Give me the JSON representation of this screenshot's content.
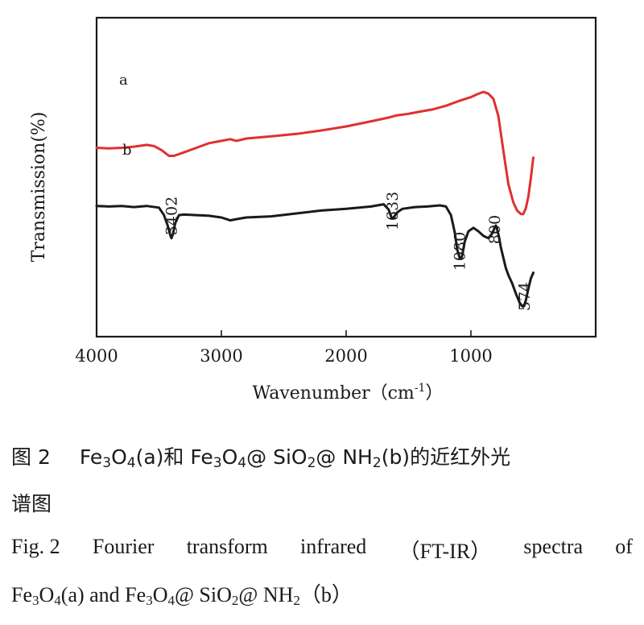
{
  "chart_data": {
    "type": "line",
    "xlabel": "Wavenumber（cm",
    "xlabel_sup": "-1",
    "xlabel_close": "）",
    "ylabel": "Transmission(%)",
    "xlim": [
      4000,
      0
    ],
    "x_reversed": true,
    "x_ticks": [
      "4000",
      "3000",
      "2000",
      "1000"
    ],
    "x_tick_values": [
      4000,
      3000,
      2000,
      1000
    ],
    "grid": false,
    "legend": "none",
    "series": [
      {
        "name": "a",
        "color": "#e03030",
        "x": [
          4000,
          3900,
          3800,
          3700,
          3600,
          3540,
          3480,
          3420,
          3380,
          3300,
          3200,
          3100,
          3000,
          2930,
          2880,
          2800,
          2700,
          2600,
          2400,
          2200,
          2000,
          1800,
          1650,
          1600,
          1500,
          1400,
          1300,
          1200,
          1100,
          1000,
          950,
          900,
          860,
          820,
          780,
          740,
          700,
          660,
          630,
          600,
          580,
          560,
          540,
          520,
          500
        ],
        "y": [
          6.05,
          6.0,
          6.05,
          6.15,
          6.3,
          6.2,
          5.85,
          5.35,
          5.35,
          5.65,
          6.05,
          6.45,
          6.65,
          6.8,
          6.65,
          6.85,
          6.95,
          7.05,
          7.25,
          7.55,
          7.9,
          8.35,
          8.7,
          8.85,
          9.0,
          9.2,
          9.4,
          9.7,
          10.1,
          10.45,
          10.7,
          10.9,
          10.75,
          10.3,
          8.8,
          5.8,
          2.9,
          1.3,
          0.6,
          0.3,
          0.3,
          0.8,
          1.8,
          3.4,
          5.2
        ]
      },
      {
        "name": "b",
        "color": "#1a1a1a",
        "x": [
          4000,
          3900,
          3800,
          3700,
          3600,
          3500,
          3460,
          3430,
          3410,
          3400,
          3390,
          3370,
          3340,
          3300,
          3200,
          3100,
          3000,
          2930,
          2880,
          2800,
          2600,
          2400,
          2200,
          2000,
          1800,
          1700,
          1660,
          1640,
          1633,
          1620,
          1590,
          1550,
          1450,
          1350,
          1250,
          1200,
          1160,
          1130,
          1110,
          1090,
          1080,
          1070,
          1050,
          1020,
          980,
          940,
          900,
          860,
          830,
          810,
          800,
          790,
          775,
          760,
          740,
          720,
          700,
          670,
          640,
          610,
          590,
          574,
          560,
          540,
          520,
          500
        ],
        "y": [
          1.0,
          0.95,
          1.0,
          0.9,
          1.0,
          0.85,
          0.2,
          -0.7,
          -1.5,
          -1.8,
          -1.5,
          -0.5,
          0.2,
          0.25,
          0.2,
          0.15,
          0.0,
          -0.25,
          -0.15,
          0.0,
          0.1,
          0.35,
          0.6,
          0.75,
          0.95,
          1.15,
          0.7,
          0.1,
          -0.1,
          0.0,
          0.45,
          0.75,
          0.9,
          0.95,
          1.05,
          0.95,
          0.2,
          -1.3,
          -2.8,
          -3.5,
          -3.6,
          -3.3,
          -2.1,
          -1.2,
          -0.9,
          -1.2,
          -1.6,
          -1.8,
          -1.4,
          -0.9,
          -0.7,
          -1.0,
          -1.7,
          -2.6,
          -3.5,
          -4.4,
          -5.0,
          -5.7,
          -6.6,
          -7.4,
          -7.7,
          -7.7,
          -7.2,
          -6.2,
          -5.3,
          -4.8
        ]
      }
    ],
    "series_labels": [
      "a",
      "b"
    ],
    "annotations": [
      {
        "text": "3402",
        "x": 3402
      },
      {
        "text": "1633",
        "x": 1633
      },
      {
        "text": "1080",
        "x": 1080
      },
      {
        "text": "800",
        "x": 800
      },
      {
        "text": "574",
        "x": 574
      }
    ]
  },
  "caption": {
    "cn_fig": "图 2",
    "cn_line1_a": "Fe",
    "cn_line1_a_sub1": "3",
    "cn_line1_a_o": "O",
    "cn_line1_a_sub2": "4",
    "cn_line1_b": "(a)和 Fe",
    "cn_line1_b_sub1": "3",
    "cn_line1_b_o": "O",
    "cn_line1_b_sub2": "4",
    "cn_line1_c": "@ SiO",
    "cn_line1_c_sub": "2",
    "cn_line1_d": "@ NH",
    "cn_line1_d_sub": "2",
    "cn_line1_e": "(b)的近红外光",
    "cn_line2": "谱图",
    "en_fig": "Fig. 2",
    "en_line1_words": [
      "Fourier",
      "transform",
      "infrared",
      "（FT-IR）",
      "spectra",
      "of"
    ],
    "en_line2_a": "Fe",
    "en_line2_a_sub1": "3",
    "en_line2_a_o": "O",
    "en_line2_a_sub2": "4",
    "en_line2_b": "(a) and Fe",
    "en_line2_b_sub1": "3",
    "en_line2_b_o": "O",
    "en_line2_b_sub2": "4",
    "en_line2_c": "@ SiO",
    "en_line2_c_sub": "2",
    "en_line2_d": "@ NH",
    "en_line2_d_sub": "2",
    "en_line2_e": "（b）"
  }
}
